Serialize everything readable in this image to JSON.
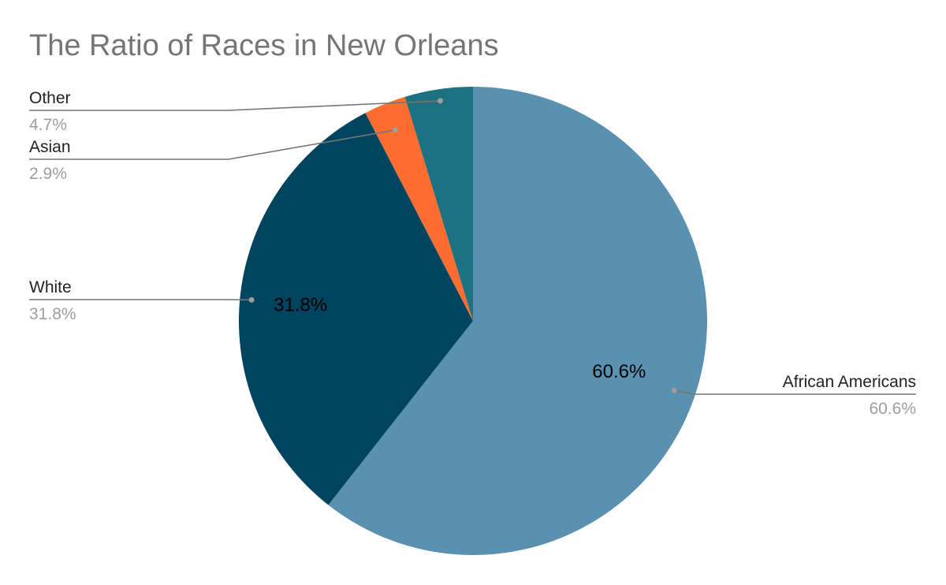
{
  "chart_data": {
    "type": "pie",
    "title": "The Ratio of Races in New Orleans",
    "slices": [
      {
        "label": "African Americans",
        "value": 60.6,
        "display": "60.6%",
        "color": "#5a91b0"
      },
      {
        "label": "White",
        "value": 31.8,
        "display": "31.8%",
        "color": "#00445f"
      },
      {
        "label": "Asian",
        "value": 2.9,
        "display": "2.9%",
        "color": "#ff6d31"
      },
      {
        "label": "Other",
        "value": 4.7,
        "display": "4.7%",
        "color": "#1d7181"
      }
    ],
    "start": "12 o'clock",
    "direction": "clockwise",
    "legend": "none",
    "label_style": "callout labels with leader lines; value labels shown inside the two largest slices",
    "colors": {
      "title": "#757575",
      "leader_line": "#757575",
      "category_text": "#222222",
      "percent_text": "#9e9e9e",
      "inside_text": "#000000"
    }
  }
}
